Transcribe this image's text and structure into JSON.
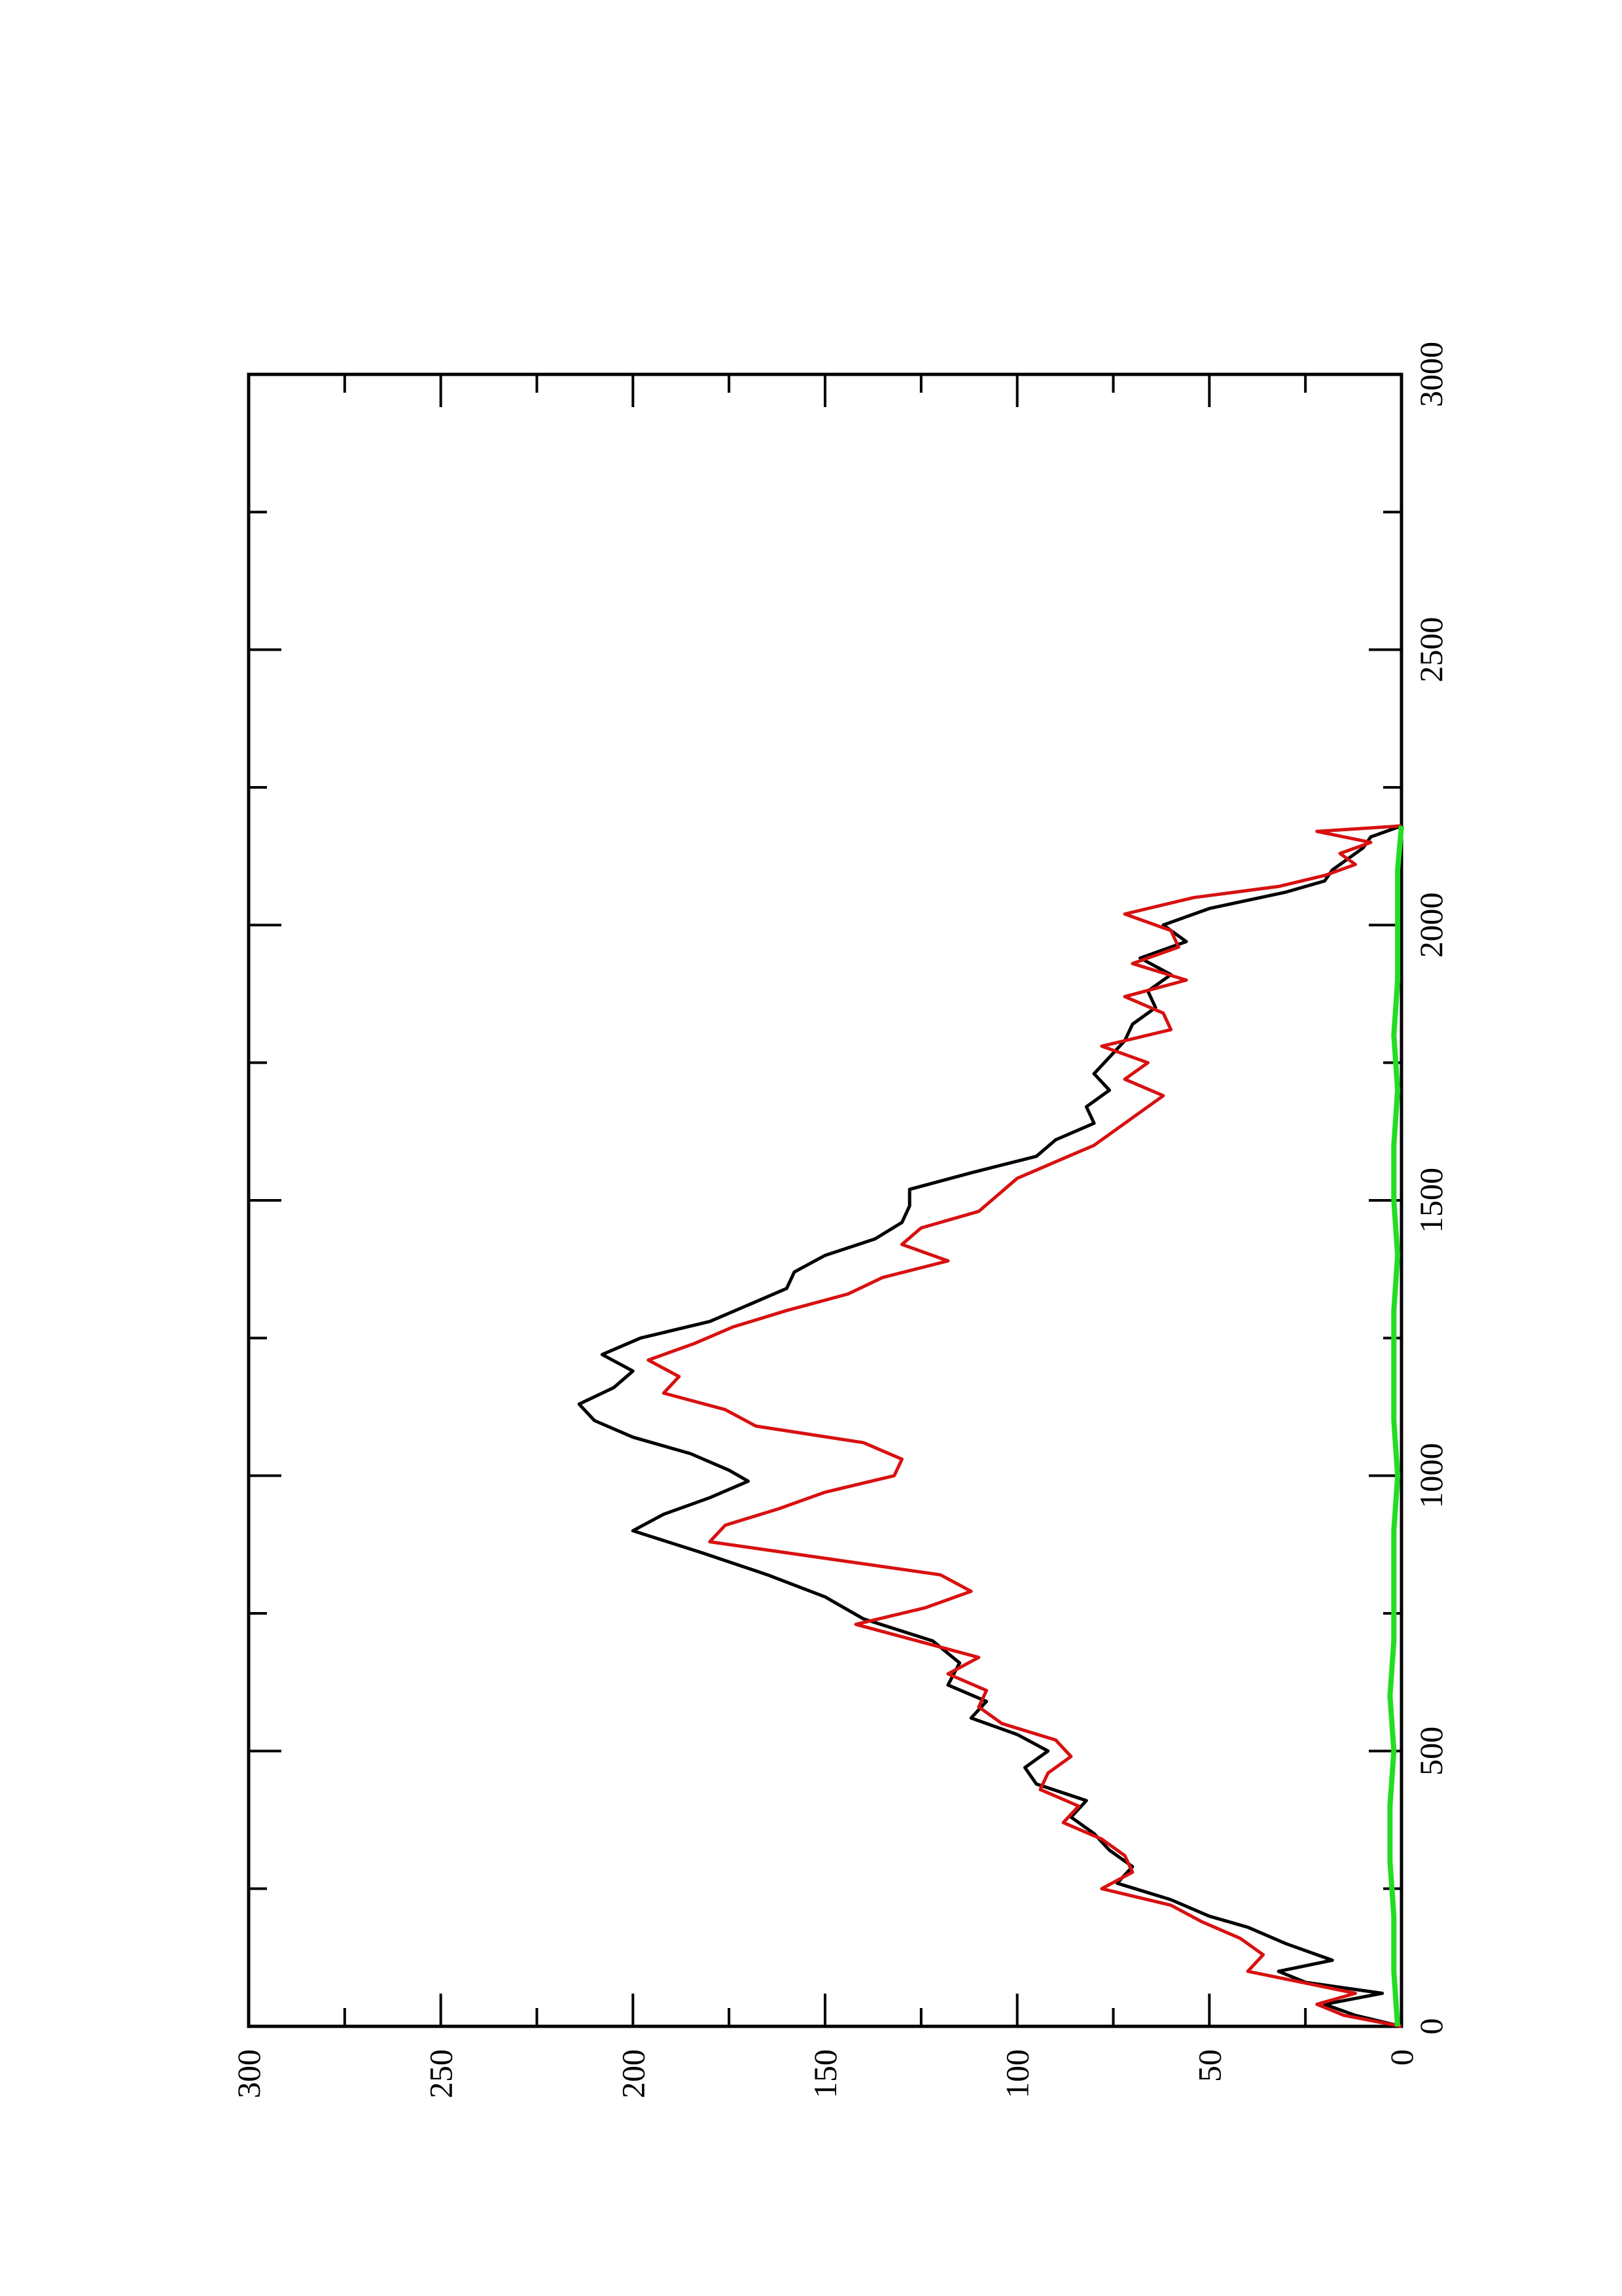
{
  "chart_data": {
    "type": "line",
    "title": "",
    "xlabel": "",
    "ylabel": "",
    "orientation": "rotated 90 degrees counter-clockwise",
    "xlim": [
      0,
      3000
    ],
    "ylim": [
      0,
      300
    ],
    "x_ticks": [
      "0",
      "500",
      "1000",
      "1500",
      "2000",
      "2500",
      "3000"
    ],
    "y_ticks": [
      "0",
      "50",
      "100",
      "150",
      "200",
      "250",
      "300"
    ],
    "x_minor_step": 250,
    "y_minor_step": 25,
    "grid": false,
    "legend": "none",
    "series": [
      {
        "color": "#000000",
        "x": [
          0,
          20,
          40,
          60,
          80,
          100,
          120,
          150,
          180,
          200,
          230,
          260,
          290,
          320,
          350,
          380,
          410,
          440,
          470,
          500,
          530,
          560,
          590,
          620,
          660,
          700,
          740,
          780,
          820,
          860,
          900,
          930,
          960,
          990,
          1010,
          1040,
          1070,
          1100,
          1130,
          1160,
          1190,
          1220,
          1250,
          1280,
          1310,
          1340,
          1370,
          1400,
          1430,
          1460,
          1490,
          1520,
          1550,
          1580,
          1610,
          1640,
          1670,
          1700,
          1730,
          1760,
          1790,
          1820,
          1850,
          1880,
          1910,
          1940,
          1970,
          2000,
          2030,
          2060,
          2080,
          2100,
          2120,
          2140,
          2160,
          2180
        ],
        "y": [
          0,
          12,
          20,
          5,
          25,
          32,
          18,
          30,
          40,
          50,
          60,
          74,
          70,
          76,
          80,
          86,
          82,
          95,
          98,
          92,
          100,
          112,
          108,
          118,
          115,
          122,
          140,
          150,
          165,
          182,
          200,
          192,
          180,
          170,
          175,
          185,
          200,
          210,
          214,
          205,
          200,
          208,
          198,
          180,
          170,
          160,
          158,
          150,
          137,
          130,
          128,
          128,
          112,
          95,
          90,
          80,
          82,
          76,
          80,
          76,
          72,
          70,
          64,
          66,
          60,
          68,
          56,
          62,
          50,
          30,
          20,
          18,
          14,
          10,
          8,
          0
        ]
      },
      {
        "color": "#d81010",
        "x": [
          0,
          20,
          40,
          60,
          80,
          100,
          130,
          160,
          190,
          220,
          250,
          280,
          310,
          340,
          370,
          400,
          430,
          460,
          490,
          520,
          550,
          580,
          610,
          640,
          670,
          700,
          730,
          760,
          790,
          820,
          850,
          880,
          910,
          940,
          970,
          1000,
          1030,
          1060,
          1090,
          1120,
          1150,
          1180,
          1210,
          1240,
          1270,
          1300,
          1330,
          1360,
          1390,
          1420,
          1450,
          1480,
          1510,
          1540,
          1570,
          1600,
          1630,
          1660,
          1690,
          1720,
          1750,
          1780,
          1810,
          1840,
          1870,
          1900,
          1930,
          1960,
          1990,
          2020,
          2050,
          2070,
          2090,
          2110,
          2130,
          2150,
          2170,
          2180
        ],
        "y": [
          0,
          15,
          22,
          12,
          26,
          40,
          36,
          42,
          52,
          60,
          78,
          70,
          72,
          78,
          88,
          84,
          94,
          92,
          86,
          90,
          104,
          110,
          108,
          118,
          110,
          126,
          142,
          124,
          112,
          120,
          150,
          180,
          176,
          162,
          150,
          132,
          130,
          140,
          168,
          176,
          192,
          188,
          196,
          184,
          174,
          160,
          144,
          135,
          118,
          130,
          125,
          110,
          105,
          100,
          90,
          80,
          74,
          68,
          62,
          72,
          66,
          78,
          60,
          62,
          72,
          56,
          70,
          58,
          60,
          72,
          54,
          32,
          20,
          12,
          16,
          8,
          22,
          0
        ]
      },
      {
        "color": "#22dd22",
        "x": [
          0,
          100,
          200,
          300,
          400,
          500,
          600,
          700,
          800,
          900,
          1000,
          1100,
          1200,
          1300,
          1400,
          1500,
          1600,
          1700,
          1800,
          1900,
          2000,
          2100,
          2180
        ],
        "y": [
          1,
          2,
          2,
          3,
          3,
          2,
          3,
          2,
          2,
          2,
          1,
          2,
          2,
          2,
          1,
          2,
          2,
          1,
          2,
          1,
          1,
          1,
          0
        ]
      }
    ]
  }
}
